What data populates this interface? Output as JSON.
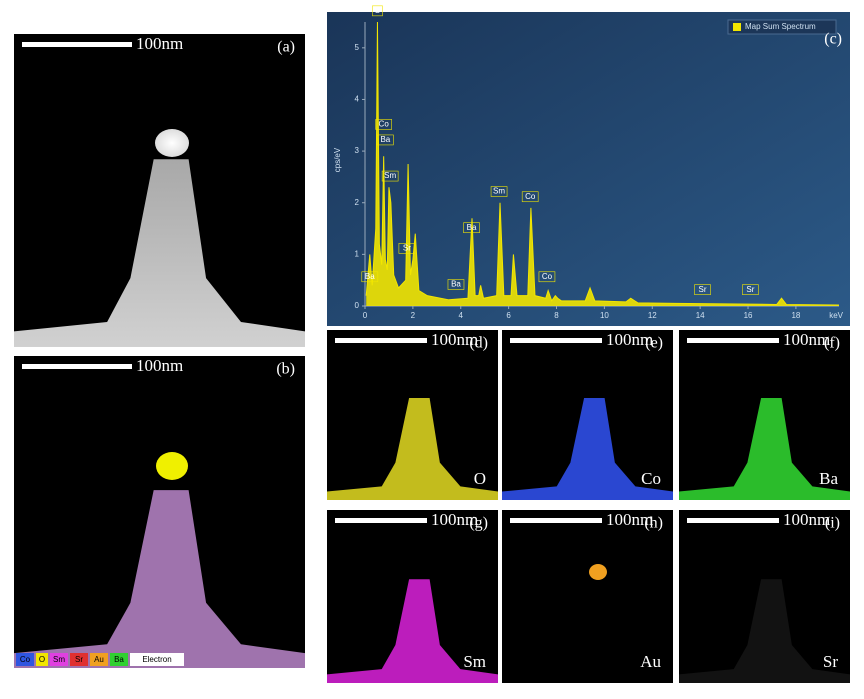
{
  "panels": [
    {
      "label": "(a)",
      "scale_bar": "100nm"
    },
    {
      "label": "(b)",
      "scale_bar": "100nm",
      "legend": [
        {
          "name": "Co",
          "color": "#2f55e0"
        },
        {
          "name": "O",
          "color": "#f2e600"
        },
        {
          "name": "Sm",
          "color": "#e040e0"
        },
        {
          "name": "Sr",
          "color": "#e03030"
        },
        {
          "name": "Au",
          "color": "#f0a020"
        },
        {
          "name": "Ba",
          "color": "#30d030"
        },
        {
          "name": "Electron",
          "color": "#ffffff"
        }
      ]
    }
  ],
  "maps": [
    {
      "label": "(d)",
      "scale_bar": "100nm",
      "element": "O",
      "color": "#d8d020"
    },
    {
      "label": "(e)",
      "scale_bar": "100nm",
      "element": "Co",
      "color": "#2f4fe8"
    },
    {
      "label": "(f)",
      "scale_bar": "100nm",
      "element": "Ba",
      "color": "#30d030"
    },
    {
      "label": "(g)",
      "scale_bar": "100nm",
      "element": "Sm",
      "color": "#d020d0"
    },
    {
      "label": "(h)",
      "scale_bar": "100nm",
      "element": "Au",
      "color": "#f0a020"
    },
    {
      "label": "(i)",
      "scale_bar": "100nm",
      "element": "Sr",
      "color": "#141414"
    }
  ],
  "chart_data": {
    "type": "line",
    "label": "(c)",
    "legend": "Map Sum Spectrum",
    "color": "#f2e600",
    "ylabel": "cps/eV",
    "xlabel": "keV",
    "x": [
      0.05,
      0.2,
      0.3,
      0.45,
      0.52,
      0.6,
      0.7,
      0.78,
      0.85,
      0.93,
      1.0,
      1.08,
      1.2,
      1.4,
      1.7,
      1.8,
      1.9,
      2.0,
      2.1,
      2.25,
      2.6,
      3.5,
      4.3,
      4.47,
      4.6,
      4.75,
      4.83,
      4.95,
      5.5,
      5.64,
      5.8,
      6.1,
      6.2,
      6.35,
      6.8,
      6.93,
      7.1,
      7.55,
      7.65,
      7.8,
      7.95,
      8.05,
      8.2,
      9.2,
      9.4,
      9.6,
      10.9,
      11.1,
      11.4,
      13.0,
      17.2,
      17.4,
      17.6,
      19.8
    ],
    "values": [
      0.2,
      1.0,
      0.4,
      1.5,
      5.5,
      1.2,
      0.8,
      2.9,
      0.9,
      0.7,
      2.3,
      2.0,
      0.6,
      0.35,
      0.5,
      2.75,
      0.6,
      0.9,
      1.4,
      0.3,
      0.2,
      0.12,
      0.15,
      1.7,
      0.2,
      0.2,
      0.4,
      0.15,
      0.2,
      2.0,
      0.2,
      0.2,
      1.0,
      0.2,
      0.2,
      1.9,
      0.2,
      0.15,
      0.3,
      0.1,
      0.2,
      0.15,
      0.1,
      0.1,
      0.35,
      0.1,
      0.08,
      0.15,
      0.06,
      0.05,
      0.03,
      0.15,
      0.03,
      0.02
    ],
    "xlim": [
      0,
      19.8
    ],
    "ylim": [
      0,
      5.5
    ],
    "xticks": [
      0,
      2,
      4,
      6,
      8,
      10,
      12,
      14,
      16,
      18
    ],
    "yticks": [
      0,
      1,
      2,
      3,
      4,
      5
    ],
    "annotations": [
      {
        "label": "O",
        "x": 0.52,
        "y": 5.6
      },
      {
        "label": "Co",
        "x": 0.78,
        "y": 3.4
      },
      {
        "label": "Ba",
        "x": 0.85,
        "y": 3.1
      },
      {
        "label": "Sm",
        "x": 1.05,
        "y": 2.4
      },
      {
        "label": "Sr",
        "x": 1.75,
        "y": 1.0
      },
      {
        "label": "Ba",
        "x": 4.45,
        "y": 1.4
      },
      {
        "label": "Sm",
        "x": 5.6,
        "y": 2.1
      },
      {
        "label": "Co",
        "x": 6.9,
        "y": 2.0
      },
      {
        "label": "Co",
        "x": 7.6,
        "y": 0.45
      },
      {
        "label": "Ba",
        "x": 0.2,
        "y": 0.45
      },
      {
        "label": "Ba",
        "x": 3.8,
        "y": 0.3
      },
      {
        "label": "Sr",
        "x": 14.1,
        "y": 0.2
      },
      {
        "label": "Sr",
        "x": 16.1,
        "y": 0.2
      }
    ]
  }
}
